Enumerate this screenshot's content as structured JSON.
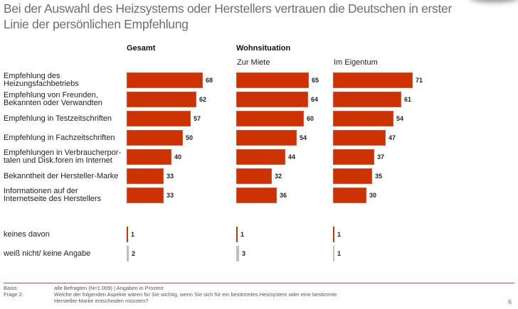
{
  "title": "Bei der Auswahl des Heizsystems oder Herstellers vertrauen die Deutschen in erster Linie der persönlichen Empfehlung",
  "page_number": "6",
  "footer": {
    "basis_label": "Basis:",
    "basis_text": "alle Befragten (N=1.009) | Angaben in Prozent",
    "question_label": "Frage 2:",
    "question_text_line1": "Welche der folgenden Aspekte wären für Sie wichtig, wenn Sie sich für ein bestimmtes Heizsystem oder eine bestimmte",
    "question_text_line2": "Hersteller-Marke entscheiden müssten?"
  },
  "colors": {
    "bar": "#cc3300",
    "none_bar": "#cc3300",
    "dontknow_bar": "#bfbfbf",
    "title": "#6e6e6e",
    "footer_line": "#c0504d"
  },
  "chart_data": {
    "type": "bar",
    "orientation": "horizontal",
    "title": "Bei der Auswahl des Heizsystems oder Herstellers vertrauen die Deutschen in erster Linie der persönlichen Empfehlung",
    "unit": "Prozent",
    "group_headers": {
      "total": "Gesamt",
      "housing": "Wohnsituation"
    },
    "categories": [
      "Empfehlung des Heizungsfachbetriebs",
      "Empfehlung von Freunden, Bekannten oder Verwandten",
      "Empfehlung in Testzeitschriften",
      "Empfehlung in Fachzeitschriften",
      "Empfehlungen in Verbraucherpor-talen und Disk.foren im Internet",
      "Bekanntheit der Hersteller-Marke",
      "Informationen auf der Internetseite des Herstellers",
      "keines davon",
      "weiß nicht/ keine Angabe"
    ],
    "category_lines": [
      [
        "Empfehlung des",
        "Heizungsfachbetriebs"
      ],
      [
        "Empfehlung von Freunden,",
        "Bekannten oder Verwandten"
      ],
      [
        "Empfehlung in Testzeitschriften"
      ],
      [
        "Empfehlung in Fachzeitschriften"
      ],
      [
        "Empfehlungen in Verbraucherpor-",
        "talen und Disk.foren im Internet"
      ],
      [
        "Bekanntheit der Hersteller-Marke"
      ],
      [
        "Informationen auf der",
        "Internetseite des Herstellers"
      ],
      [
        "keines davon"
      ],
      [
        "weiß nicht/ keine Angabe"
      ]
    ],
    "series": [
      {
        "name": "Gesamt",
        "header": "",
        "values": [
          68,
          62,
          57,
          50,
          40,
          33,
          33,
          1,
          2
        ]
      },
      {
        "name": "Zur Miete",
        "header": "Zur Miete",
        "values": [
          65,
          64,
          60,
          54,
          44,
          32,
          36,
          1,
          3
        ]
      },
      {
        "name": "Im Eigentum",
        "header": "Im Eigentum",
        "values": [
          71,
          61,
          54,
          47,
          37,
          35,
          30,
          1,
          1
        ]
      }
    ],
    "xlim": [
      0,
      100
    ],
    "grid": false,
    "legend": "none"
  }
}
